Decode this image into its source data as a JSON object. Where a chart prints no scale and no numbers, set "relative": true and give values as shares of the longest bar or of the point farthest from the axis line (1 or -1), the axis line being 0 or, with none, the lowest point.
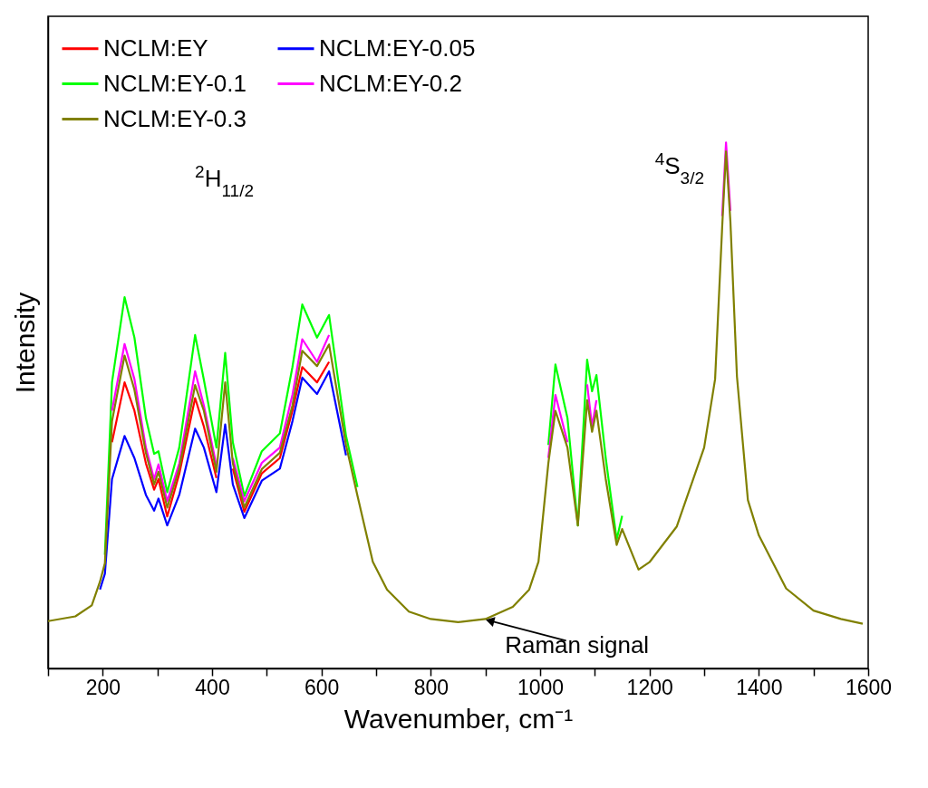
{
  "chart_data": {
    "type": "line",
    "relative": true,
    "xlabel": "Wavenumber, cm⁻¹",
    "ylabel": "Intensity",
    "legend": "top left",
    "xlim": [
      100,
      1600
    ],
    "xticks": [
      {
        "value": 100,
        "label": null
      },
      200,
      {
        "value": 300,
        "label": null
      },
      400,
      {
        "value": 500,
        "label": null
      },
      600,
      {
        "value": 700,
        "label": null
      },
      800,
      {
        "value": 900,
        "label": null
      },
      1000,
      {
        "value": 1100,
        "label": null
      },
      1200,
      {
        "value": 1300,
        "label": null
      },
      1400,
      {
        "value": 1500,
        "label": null
      },
      1600
    ],
    "x": [
      100,
      150,
      180,
      195,
      204,
      217,
      240,
      258,
      279,
      294,
      302,
      318,
      340,
      369,
      385,
      408,
      424,
      438,
      459,
      491,
      524,
      547,
      565,
      592,
      614,
      645,
      666,
      694,
      720,
      760,
      800,
      850,
      900,
      950,
      980,
      997,
      1015,
      1028,
      1050,
      1069,
      1086,
      1095,
      1103,
      1120,
      1140,
      1150,
      1180,
      1200,
      1250,
      1300,
      1320,
      1333,
      1340,
      1348,
      1360,
      1380,
      1400,
      1450,
      1500,
      1550,
      1590
    ],
    "series": [
      {
        "name": "NCLM:EY",
        "color": "#ff0000",
        "values": [
          null,
          null,
          null,
          null,
          null,
          0.43,
          0.544,
          0.49,
          0.39,
          0.34,
          0.36,
          0.289,
          0.37,
          0.514,
          0.46,
          0.362,
          null,
          0.38,
          0.298,
          0.371,
          0.4,
          0.49,
          0.573,
          0.544,
          0.583,
          null,
          null,
          null,
          null,
          null,
          null,
          null,
          null,
          null,
          null,
          null,
          null,
          null,
          null,
          null,
          null,
          null,
          null,
          null,
          null,
          null,
          null,
          null,
          null,
          null,
          null,
          null,
          null,
          null,
          null,
          null,
          null,
          null,
          null,
          null,
          null
        ]
      },
      {
        "name": "NCLM:EY-0.05",
        "color": "#0000ff",
        "values": [
          null,
          null,
          null,
          0.15,
          0.18,
          0.36,
          0.442,
          0.4,
          0.33,
          0.3,
          0.323,
          0.272,
          0.33,
          0.456,
          0.42,
          0.335,
          0.464,
          0.35,
          0.286,
          0.357,
          0.38,
          0.47,
          0.553,
          0.522,
          0.565,
          0.405,
          null,
          null,
          null,
          null,
          null,
          null,
          null,
          null,
          null,
          null,
          null,
          null,
          null,
          null,
          null,
          null,
          null,
          null,
          null,
          null,
          null,
          null,
          null,
          null,
          null,
          null,
          null,
          null,
          null,
          null,
          null,
          null,
          null,
          null,
          null
        ]
      },
      {
        "name": "NCLM:EY-0.1",
        "color": "#00ff00",
        "values": [
          null,
          null,
          null,
          null,
          0.216,
          0.544,
          0.706,
          0.629,
          0.476,
          0.408,
          0.413,
          0.335,
          0.42,
          0.634,
          0.549,
          0.42,
          0.6,
          0.43,
          0.328,
          0.413,
          0.447,
          0.573,
          0.692,
          0.629,
          0.672,
          0.442,
          0.345,
          null,
          null,
          null,
          null,
          null,
          null,
          null,
          null,
          null,
          0.425,
          0.578,
          0.476,
          0.272,
          0.587,
          0.527,
          0.558,
          0.4,
          0.245,
          0.29,
          null,
          null,
          null,
          null,
          null,
          null,
          null,
          null,
          null,
          null,
          null,
          null,
          null,
          null,
          null
        ]
      },
      {
        "name": "NCLM:EY-0.2",
        "color": "#ff00ff",
        "values": [
          null,
          null,
          null,
          null,
          null,
          0.49,
          0.617,
          0.55,
          0.42,
          0.36,
          0.388,
          0.318,
          0.39,
          0.565,
          0.5,
          0.386,
          null,
          0.4,
          0.318,
          0.391,
          0.42,
          0.52,
          0.626,
          0.583,
          0.634,
          null,
          null,
          null,
          null,
          null,
          null,
          null,
          null,
          null,
          null,
          null,
          0.4,
          0.52,
          0.43,
          null,
          0.54,
          0.46,
          0.51,
          null,
          null,
          null,
          null,
          null,
          null,
          null,
          null,
          0.86,
          1.0,
          0.87,
          null,
          null,
          null,
          null,
          null,
          null,
          null
        ]
      },
      {
        "name": "NCLM:EY-0.3",
        "color": "#808000",
        "values": [
          0.09,
          0.099,
          0.12,
          0.165,
          0.2,
          0.47,
          0.595,
          0.53,
          0.41,
          0.35,
          0.374,
          0.306,
          0.38,
          0.539,
          0.49,
          0.374,
          0.544,
          0.39,
          0.306,
          0.379,
          0.41,
          0.5,
          0.604,
          0.575,
          0.616,
          0.425,
          0.328,
          0.203,
          0.15,
          0.108,
          0.094,
          0.088,
          0.094,
          0.117,
          0.15,
          0.203,
          0.39,
          0.49,
          0.42,
          0.272,
          0.51,
          0.45,
          0.49,
          0.36,
          0.235,
          0.265,
          0.188,
          0.202,
          0.27,
          0.42,
          0.55,
          0.84,
          0.983,
          0.85,
          0.555,
          0.32,
          0.253,
          0.152,
          0.11,
          0.094,
          0.085
        ]
      }
    ],
    "annotations": [
      "$^{2}$H$_{11/2}$",
      "$^{4}$S$_{3/2}$",
      {
        "text": "Raman signal",
        "x": 895,
        "y": 0.094
      }
    ]
  }
}
